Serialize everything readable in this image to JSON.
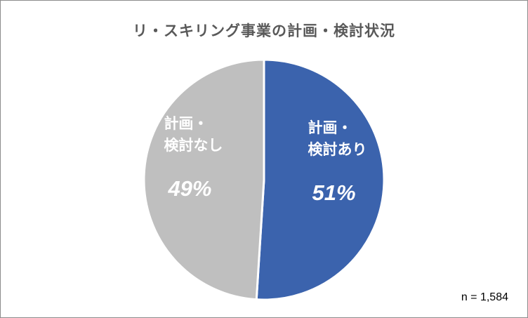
{
  "chart_data": {
    "type": "pie",
    "title": "リ・スキリング事業の計画・検討状況",
    "slices": [
      {
        "label_lines": [
          "計画・",
          "検討あり"
        ],
        "value": 51,
        "value_label": "51%",
        "color": "#3b63ad"
      },
      {
        "label_lines": [
          "計画・",
          "検討なし"
        ],
        "value": 49,
        "value_label": "49%",
        "color": "#bfbfbf"
      }
    ],
    "start_angle_deg": 0,
    "direction": "clockwise",
    "legend": "none",
    "note": "n = 1,584"
  }
}
